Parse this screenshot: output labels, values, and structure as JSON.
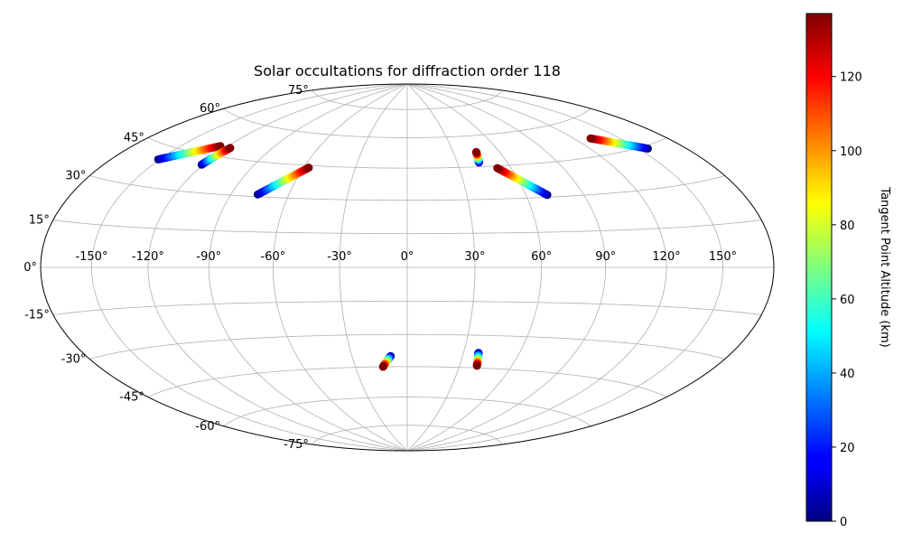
{
  "chart_data": {
    "type": "scatter",
    "projection": "hammer",
    "title": "Solar occultations for diffraction order 118",
    "xlabel": "",
    "ylabel": "",
    "grid": true,
    "lon_ticks": [
      -150,
      -120,
      -90,
      -60,
      -30,
      0,
      30,
      60,
      90,
      120,
      150
    ],
    "lon_tick_labels": [
      "-150°",
      "-120°",
      "-90°",
      "-60°",
      "-30°",
      "0°",
      "30°",
      "60°",
      "90°",
      "120°",
      "150°"
    ],
    "lat_ticks": [
      -75,
      -60,
      -45,
      -30,
      -15,
      0,
      15,
      30,
      45,
      60,
      75
    ],
    "lat_tick_labels": [
      "-75°",
      "-60°",
      "-45°",
      "-30°",
      "-15°",
      "0°",
      "15°",
      "30°",
      "45°",
      "60°",
      "75°"
    ],
    "colorbar": {
      "label": "Tangent Point Altitude (km)",
      "colormap": "jet",
      "range": [
        0,
        137
      ],
      "ticks": [
        0,
        20,
        40,
        60,
        80,
        100,
        120
      ],
      "tick_labels": [
        "0",
        "20",
        "40",
        "60",
        "80",
        "100",
        "120"
      ]
    },
    "series": [
      {
        "lon_start": -151,
        "lat_start": 40,
        "alt_start": 0,
        "lon_end": -125,
        "lat_end": 49,
        "alt_end": 137
      },
      {
        "lon_start": -121,
        "lat_start": 41,
        "alt_start": 0,
        "lon_end": -117,
        "lat_end": 49,
        "alt_end": 137
      },
      {
        "lon_start": -76,
        "lat_start": 31,
        "alt_start": 0,
        "lon_end": -57,
        "lat_end": 44,
        "alt_end": 137
      },
      {
        "lon_start": -9,
        "lat_start": -40,
        "alt_start": 0,
        "lon_end": -14,
        "lat_end": -45,
        "alt_end": 137
      },
      {
        "lon_start": 38,
        "lat_start": -38,
        "alt_start": 0,
        "lon_end": 40,
        "lat_end": -44,
        "alt_end": 137
      },
      {
        "lon_start": 43,
        "lat_start": 47,
        "alt_start": 0,
        "lon_end": 45,
        "lat_end": 52,
        "alt_end": 137
      },
      {
        "lon_start": 71,
        "lat_start": 31,
        "alt_start": 0,
        "lon_end": 52,
        "lat_end": 44,
        "alt_end": 137
      },
      {
        "lon_start": 156,
        "lat_start": 44,
        "alt_start": 0,
        "lon_end": 131,
        "lat_end": 52,
        "alt_end": 137
      }
    ]
  }
}
